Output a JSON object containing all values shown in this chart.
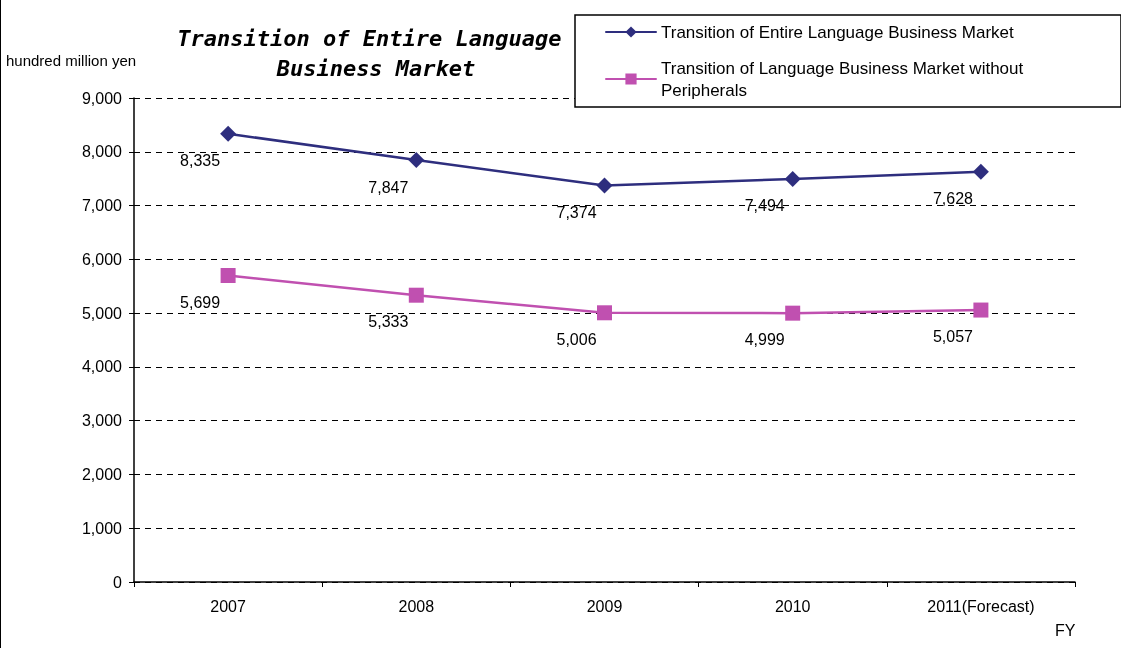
{
  "chart_data": {
    "type": "line",
    "title": "Transition of Entire Language Business Market",
    "ylabel": "hundred million yen",
    "xlabel": "FY",
    "categories": [
      "2007",
      "2008",
      "2009",
      "2010",
      "2011(Forecast)"
    ],
    "series": [
      {
        "name": "Transition of Entire Language Business Market",
        "color": "#2e2e7e",
        "marker": "diamond",
        "values": [
          8335,
          7847,
          7374,
          7494,
          7628
        ],
        "value_labels": [
          "8,335",
          "7,847",
          "7,374",
          "7,494",
          "7,628"
        ]
      },
      {
        "name": "Transition of Language Business Market without Peripherals",
        "color": "#c050b0",
        "marker": "square",
        "values": [
          5699,
          5333,
          5006,
          4999,
          5057
        ],
        "value_labels": [
          "5,699",
          "5,333",
          "5,006",
          "4,999",
          "5,057"
        ]
      }
    ],
    "ylim": [
      0,
      9000
    ],
    "yticks": [
      0,
      {
        "value": 1000,
        "label": "1,000"
      },
      {
        "value": 2000,
        "label": "2,000"
      },
      {
        "value": 3000,
        "label": "3,000"
      },
      {
        "value": 4000,
        "label": "4,000"
      },
      {
        "value": 5000,
        "label": "5,000"
      },
      {
        "value": 6000,
        "label": "6,000"
      },
      {
        "value": 7000,
        "label": "7,000"
      },
      {
        "value": 8000,
        "label": "8,000"
      },
      {
        "value": 9000,
        "label": "9,000"
      }
    ],
    "grid": "y",
    "legend": "top right",
    "line_style": "solid"
  }
}
